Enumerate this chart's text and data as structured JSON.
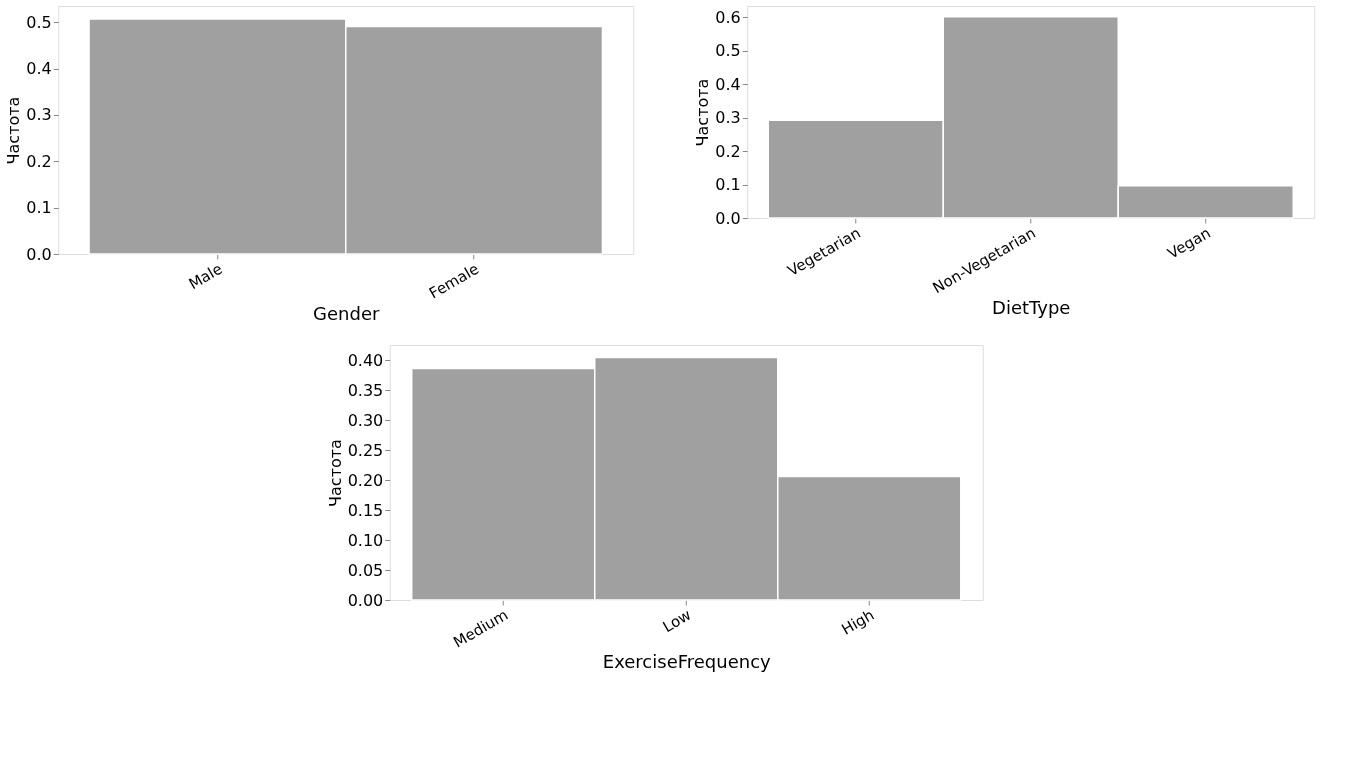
{
  "chart_data": [
    {
      "type": "bar",
      "categories": [
        "Male",
        "Female"
      ],
      "values": [
        0.507,
        0.491
      ],
      "color": "#a0a0a0",
      "xlabel": "Gender",
      "ylabel": "Частота",
      "ylim": [
        0,
        0.535
      ],
      "yticks": [
        {
          "value": 0,
          "label": "0.0"
        },
        0.1,
        0.2,
        0.3,
        0.4,
        0.5
      ],
      "grid": false
    },
    {
      "type": "bar",
      "categories": [
        "Vegetarian",
        "Non-Vegetarian",
        "Vegan"
      ],
      "values": [
        0.292,
        0.601,
        0.096
      ],
      "color": "#a0a0a0",
      "xlabel": "DietType",
      "ylabel": "Частота",
      "ylim": [
        0,
        0.633
      ],
      "yticks": [
        {
          "value": 0,
          "label": "0.0"
        },
        0.1,
        0.2,
        0.3,
        0.4,
        0.5,
        0.6
      ],
      "grid": false
    },
    {
      "type": "bar",
      "categories": [
        "Medium",
        "Low",
        "High"
      ],
      "values": [
        0.386,
        0.404,
        0.206
      ],
      "color": "#a0a0a0",
      "xlabel": "ExerciseFrequency",
      "ylabel": "Частота",
      "ylim": [
        0,
        0.425
      ],
      "yticks": [
        {
          "value": 0,
          "label": "0.00"
        },
        {
          "value": 0.05,
          "label": "0.05"
        },
        {
          "value": 0.1,
          "label": "0.10"
        },
        {
          "value": 0.15,
          "label": "0.15"
        },
        {
          "value": 0.2,
          "label": "0.20"
        },
        {
          "value": 0.25,
          "label": "0.25"
        },
        {
          "value": 0.3,
          "label": "0.30"
        },
        {
          "value": 0.35,
          "label": "0.35"
        },
        {
          "value": 0.4,
          "label": "0.40"
        }
      ],
      "grid": false
    }
  ]
}
